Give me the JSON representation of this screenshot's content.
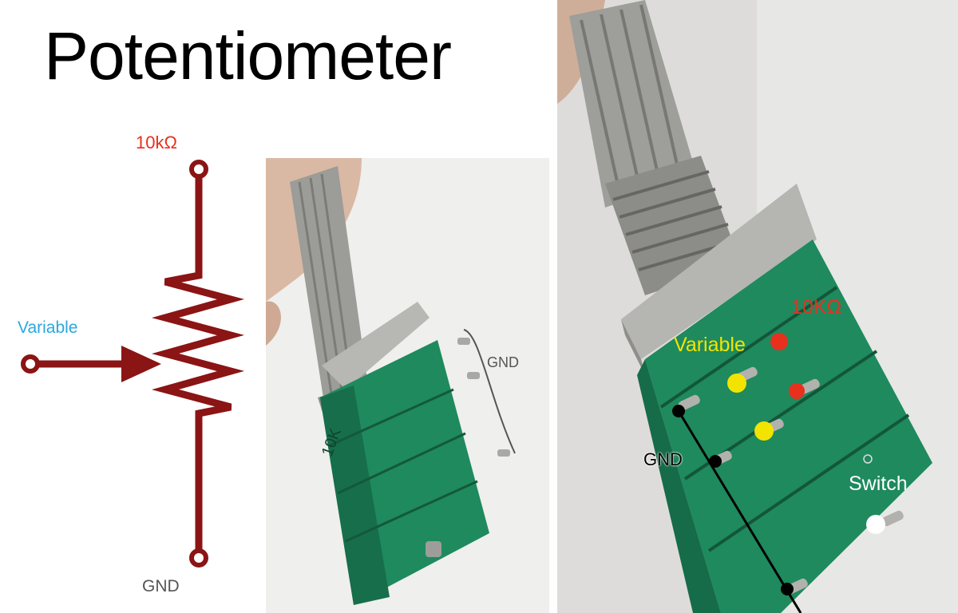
{
  "title": "Potentiometer",
  "schematic": {
    "top_label": "10kΩ",
    "wiper_label": "Variable",
    "bottom_label": "GND"
  },
  "photo_small": {
    "pin_label": "GND",
    "printed_marking": "10K"
  },
  "photo_large": {
    "label_10k": "10KΩ",
    "label_variable": "Variable",
    "label_gnd": "GND",
    "label_switch": "Switch"
  },
  "colors": {
    "schematic_line": "#8b1414",
    "label_red": "#e8301e",
    "label_blue": "#2aa7e0",
    "label_yellow": "#f2e400",
    "label_gray": "#555555",
    "pot_green": "#1e8a5e",
    "pot_metal": "#a9a9a6"
  }
}
